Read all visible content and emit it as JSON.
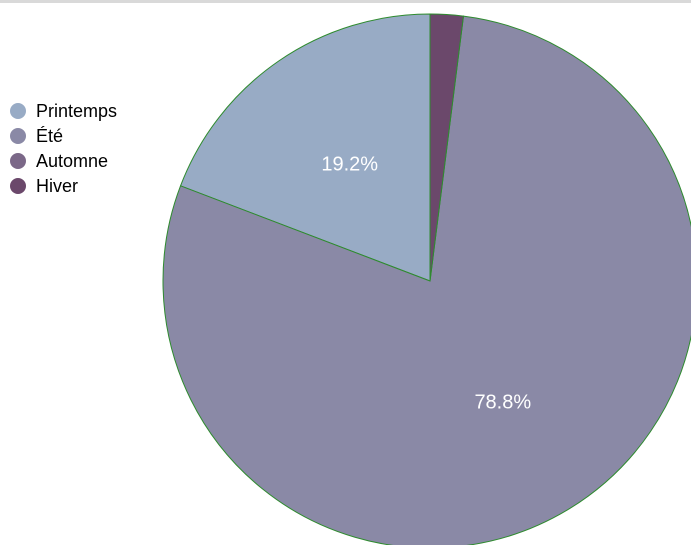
{
  "chart_data": {
    "type": "pie",
    "categories": [
      "Printemps",
      "Été",
      "Automne",
      "Hiver"
    ],
    "values": [
      19.2,
      78.8,
      0,
      2.0
    ],
    "colors": [
      "#98abc5",
      "#8a89a6",
      "#7b6888",
      "#6b486b"
    ],
    "data_labels": [
      "19.2%",
      "78.8%",
      "",
      ""
    ],
    "legend_position": "left",
    "slice_border_color": "#2e8b2e"
  }
}
